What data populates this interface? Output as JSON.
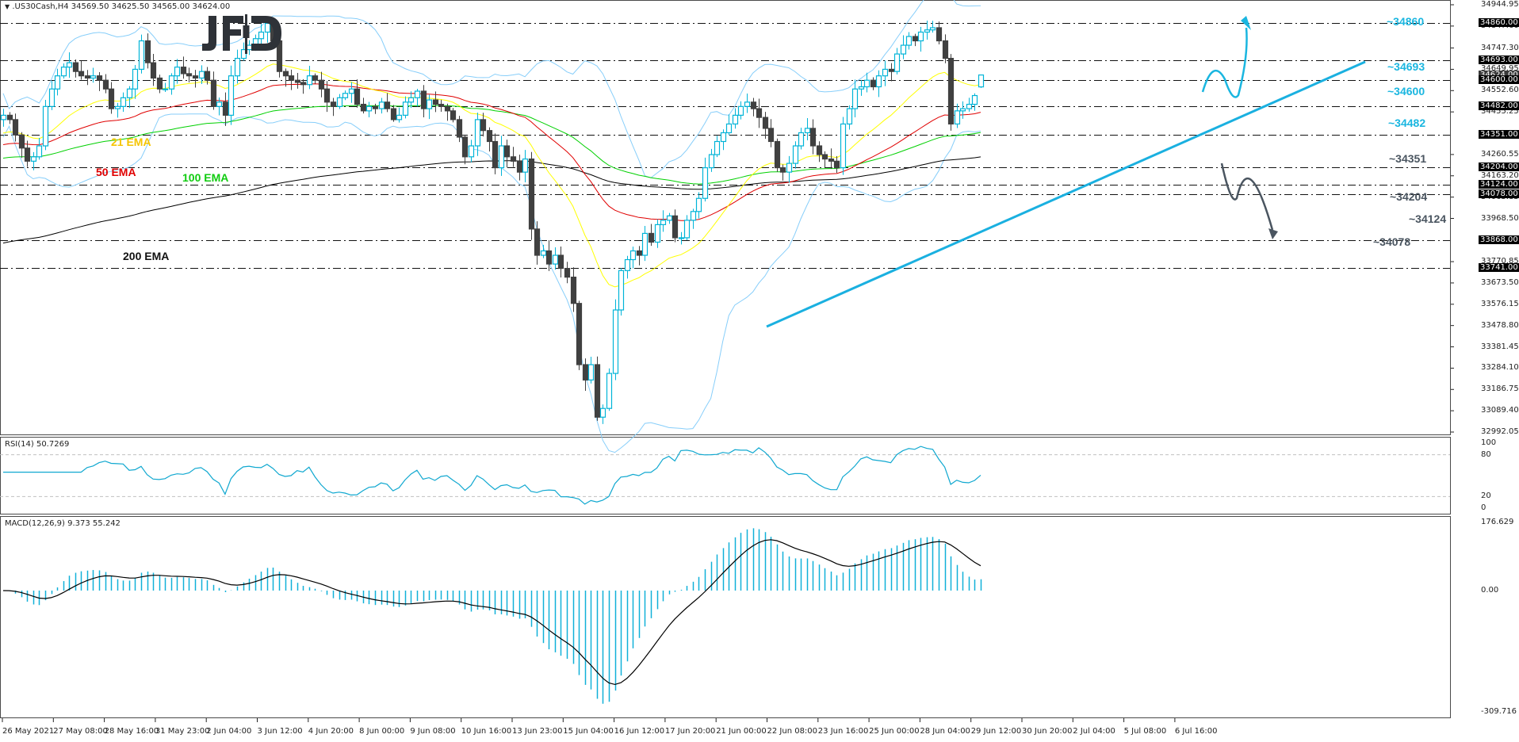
{
  "header": {
    "symbol_line": ".US30Cash,H4  34569.50 34625.50 34565.00 34624.00",
    "dropdown_icon": "triangle-down"
  },
  "logo": {
    "text": "JFD"
  },
  "colors": {
    "bull": "#00b4d8",
    "bear": "#404040",
    "ema21": "#ffff00",
    "ema50": "#e00000",
    "ema100": "#00d000",
    "ema200": "#000000",
    "bollinger": "#87cefa",
    "trendline": "#1ab0e0",
    "resistance_label": "#1ab6e0",
    "support_label": "#4a5560",
    "rsi": "#10a8d0",
    "macd_hist": "#10b0d8",
    "macd_signal": "#000000"
  },
  "chart_data": {
    "type": "candlestick",
    "title": ".US30Cash,H4",
    "ohlc_current": {
      "open": 34569.5,
      "high": 34625.5,
      "low": 34565.0,
      "close": 34624.0
    },
    "price_axis": {
      "ticks": [
        "34944.95",
        "34847.60",
        "34747.30",
        "34649.95",
        "34552.60",
        "34455.25",
        "34260.55",
        "34163.20",
        "34065.85",
        "33968.50",
        "33770.85",
        "33673.50",
        "33576.15",
        "33478.80",
        "33381.45",
        "33284.10",
        "33186.75",
        "33089.40",
        "32992.05"
      ],
      "ylim": [
        32992.05,
        34944.95
      ]
    },
    "horizontal_levels": [
      {
        "price": 34860.0,
        "label": "~34860",
        "type": "resistance"
      },
      {
        "price": 34693.0,
        "label": "~34693",
        "type": "resistance"
      },
      {
        "price": 34600.0,
        "label": "~34600",
        "type": "resistance"
      },
      {
        "price": 34482.0,
        "label": "~34482",
        "type": "resistance"
      },
      {
        "price": 34351.0,
        "label": "~34351",
        "type": "support"
      },
      {
        "price": 34204.0,
        "label": "~34204",
        "type": "support"
      },
      {
        "price": 34124.0,
        "label": "~34124",
        "type": "support"
      },
      {
        "price": 34078.0,
        "label": "~34078",
        "type": "support"
      },
      {
        "price": 33868.0,
        "label": "",
        "type": "line"
      },
      {
        "price": 33741.0,
        "label": "",
        "type": "line"
      }
    ],
    "current_price_tag": "34624.00",
    "time_axis": [
      "26 May 2021",
      "27 May 08:00",
      "28 May 16:00",
      "31 May 23:00",
      "2 Jun 04:00",
      "3 Jun 12:00",
      "4 Jun 20:00",
      "8 Jun 00:00",
      "9 Jun 08:00",
      "10 Jun 16:00",
      "13 Jun 23:00",
      "15 Jun 04:00",
      "16 Jun 12:00",
      "17 Jun 20:00",
      "21 Jun 00:00",
      "22 Jun 08:00",
      "23 Jun 16:00",
      "25 Jun 00:00",
      "28 Jun 04:00",
      "29 Jun 12:00",
      "30 Jun 20:00",
      "2 Jul 04:00",
      "5 Jul 08:00",
      "6 Jul 16:00"
    ],
    "indicators": [
      "21 EMA",
      "50 EMA",
      "100 EMA",
      "200 EMA",
      "Bollinger Bands"
    ],
    "close_path": [
      34440,
      34420,
      34350,
      34290,
      34230,
      34250,
      34300,
      34480,
      34560,
      34620,
      34660,
      34680,
      34640,
      34620,
      34610,
      34620,
      34600,
      34560,
      34470,
      34480,
      34520,
      34560,
      34650,
      34780,
      34680,
      34610,
      34560,
      34560,
      34620,
      34660,
      34630,
      34620,
      34610,
      34640,
      34600,
      34480,
      34500,
      34440,
      34620,
      34700,
      34740,
      34760,
      34790,
      34820,
      34860,
      34780,
      34640,
      34620,
      34600,
      34590,
      34580,
      34620,
      34600,
      34560,
      34500,
      34480,
      34520,
      34540,
      34560,
      34490,
      34460,
      34480,
      34470,
      34500,
      34470,
      34420,
      34440,
      34500,
      34520,
      34550,
      34470,
      34510,
      34490,
      34480,
      34460,
      34420,
      34340,
      34250,
      34300,
      34420,
      34370,
      34320,
      34200,
      34300,
      34250,
      34230,
      34180,
      34240,
      33920,
      33800,
      33820,
      33760,
      33800,
      33740,
      33700,
      33580,
      33300,
      33230,
      33300,
      33060,
      33100,
      33260,
      33550,
      33730,
      33780,
      33820,
      33800,
      33900,
      33860,
      33940,
      33960,
      33980,
      33880,
      33880,
      33960,
      34000,
      34060,
      34200,
      34260,
      34320,
      34360,
      34400,
      34440,
      34480,
      34500,
      34470,
      34430,
      34380,
      34320,
      34200,
      34180,
      34220,
      34300,
      34360,
      34380,
      34300,
      34260,
      34240,
      34230,
      34200,
      34400,
      34470,
      34560,
      34570,
      34600,
      34570,
      34620,
      34650,
      34640,
      34720,
      34760,
      34800,
      34780,
      34820,
      34830,
      34840,
      34780,
      34700,
      34400,
      34460,
      34470,
      34490,
      34530,
      34624
    ],
    "rsi": {
      "label": "RSI(14) 50.7269",
      "levels": [
        80,
        20
      ],
      "axis": [
        "100",
        "80",
        "20",
        "0"
      ],
      "last": 50.7269
    },
    "macd": {
      "label": "MACD(12,26,9) 9.373 55.242",
      "axis": [
        "176.629",
        "0.00",
        "-309.716"
      ],
      "macd": 9.373,
      "signal": 55.242
    }
  },
  "annotations": {
    "ema21": "21 EMA",
    "ema50": "50 EMA",
    "ema100": "100 EMA",
    "ema200": "200 EMA"
  }
}
